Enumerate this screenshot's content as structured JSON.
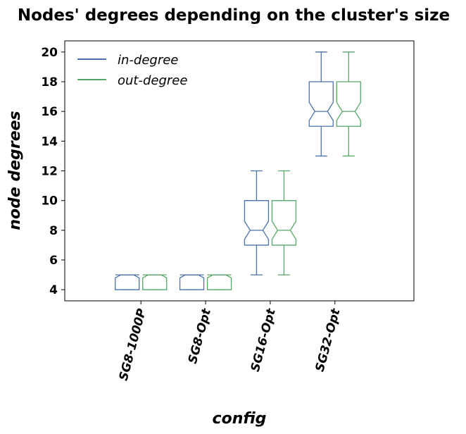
{
  "chart_data": {
    "type": "boxplot",
    "title": "Nodes' degrees depending on the cluster's size",
    "xlabel": "config",
    "ylabel": "node degrees",
    "categories": [
      "SG8-1000P",
      "SG8-Opt",
      "SG16-Opt",
      "SG32-Opt"
    ],
    "yticks": [
      4,
      6,
      8,
      10,
      12,
      14,
      16,
      18,
      20
    ],
    "ylim": [
      3.25,
      20.75
    ],
    "grid": false,
    "notched": true,
    "legend_position": "upper-left",
    "series": [
      {
        "name": "in-degree",
        "color": "#4c72b0",
        "boxes": [
          {
            "min": 4,
            "q1": 4,
            "median": 5,
            "q3": 5,
            "max": 5
          },
          {
            "min": 4,
            "q1": 4,
            "median": 5,
            "q3": 5,
            "max": 5
          },
          {
            "min": 5,
            "q1": 7,
            "median": 8,
            "q3": 10,
            "max": 12
          },
          {
            "min": 13,
            "q1": 15,
            "median": 16,
            "q3": 18,
            "max": 20
          }
        ]
      },
      {
        "name": "out-degree",
        "color": "#55a868",
        "boxes": [
          {
            "min": 4,
            "q1": 4,
            "median": 5,
            "q3": 5,
            "max": 5
          },
          {
            "min": 4,
            "q1": 4,
            "median": 5,
            "q3": 5,
            "max": 5
          },
          {
            "min": 5,
            "q1": 7,
            "median": 8,
            "q3": 10,
            "max": 12
          },
          {
            "min": 13,
            "q1": 15,
            "median": 16,
            "q3": 18,
            "max": 20
          }
        ]
      }
    ]
  }
}
